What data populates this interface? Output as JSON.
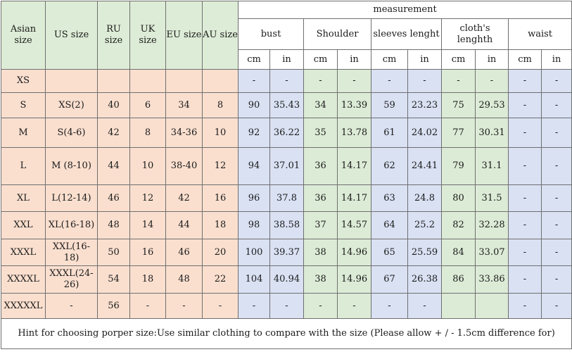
{
  "headers": {
    "asian_size": "Asian size",
    "us_size": "US size",
    "ru_size": "RU size",
    "uk_size": "UK size",
    "eu_size": "EU size",
    "au_size": "AU size",
    "measurement": "measurement",
    "groups": [
      "bust",
      "Shoulder",
      "sleeves lenght",
      "cloth's lenghth",
      "waist"
    ],
    "units": [
      "cm",
      "in",
      "cm",
      "in",
      "cm",
      "in",
      "cm",
      "in",
      "cm",
      "in"
    ]
  },
  "rows": [
    {
      "asian": "XS",
      "us": "",
      "ru": "",
      "uk": "",
      "eu": "",
      "au": "",
      "values": [
        "-",
        "-",
        "-",
        "-",
        "-",
        "-",
        "-",
        "-",
        "-",
        "-"
      ]
    },
    {
      "asian": "S",
      "us": "XS(2)",
      "ru": "40",
      "uk": "6",
      "eu": "34",
      "au": "8",
      "values": [
        "90",
        "35.43",
        "34",
        "13.39",
        "59",
        "23.23",
        "75",
        "29.53",
        "-",
        "-"
      ]
    },
    {
      "asian": "M",
      "us": "S(4-6)",
      "ru": "42",
      "uk": "8",
      "eu": "34-36",
      "au": "10",
      "values": [
        "92",
        "36.22",
        "35",
        "13.78",
        "61",
        "24.02",
        "77",
        "30.31",
        "-",
        "-"
      ]
    },
    {
      "asian": "L",
      "us": "M (8-10)",
      "ru": "44",
      "uk": "10",
      "eu": "38-40",
      "au": "12",
      "values": [
        "94",
        "37.01",
        "36",
        "14.17",
        "62",
        "24.41",
        "79",
        "31.1",
        "-",
        "-"
      ]
    },
    {
      "asian": "XL",
      "us": "L(12-14)",
      "ru": "46",
      "uk": "12",
      "eu": "42",
      "au": "16",
      "values": [
        "96",
        "37.8",
        "36",
        "14.17",
        "63",
        "24.8",
        "80",
        "31.5",
        "-",
        "-"
      ]
    },
    {
      "asian": "XXL",
      "us": "XL(16-18)",
      "ru": "48",
      "uk": "14",
      "eu": "44",
      "au": "18",
      "values": [
        "98",
        "38.58",
        "37",
        "14.57",
        "64",
        "25.2",
        "82",
        "32.28",
        "-",
        "-"
      ]
    },
    {
      "asian": "XXXL",
      "us": "XXL(16-18)",
      "ru": "50",
      "uk": "16",
      "eu": "46",
      "au": "20",
      "values": [
        "100",
        "39.37",
        "38",
        "14.96",
        "65",
        "25.59",
        "84",
        "33.07",
        "-",
        "-"
      ]
    },
    {
      "asian": "XXXXL",
      "us": "XXXL(24-26)",
      "ru": "54",
      "uk": "18",
      "eu": "48",
      "au": "22",
      "values": [
        "104",
        "40.94",
        "38",
        "14.96",
        "67",
        "26.38",
        "86",
        "33.86",
        "-",
        "-"
      ]
    },
    {
      "asian": "XXXXXL",
      "us": "-",
      "ru": "56",
      "uk": "-",
      "eu": "-",
      "au": "-",
      "values": [
        "-",
        "-",
        "-",
        "-",
        "-",
        "-",
        "",
        "",
        "-",
        "-"
      ]
    }
  ],
  "hint": "Hint for choosing porper size:Use similar clothing to compare with the size (Please allow + / - 1.5cm difference for)",
  "colors": {
    "header_green": "#ddecd6",
    "size_pink": "#fadfcf",
    "measure_blue": "#d9e1f3",
    "measure_green": "#dcebd6",
    "border": "#6f6f6f"
  }
}
